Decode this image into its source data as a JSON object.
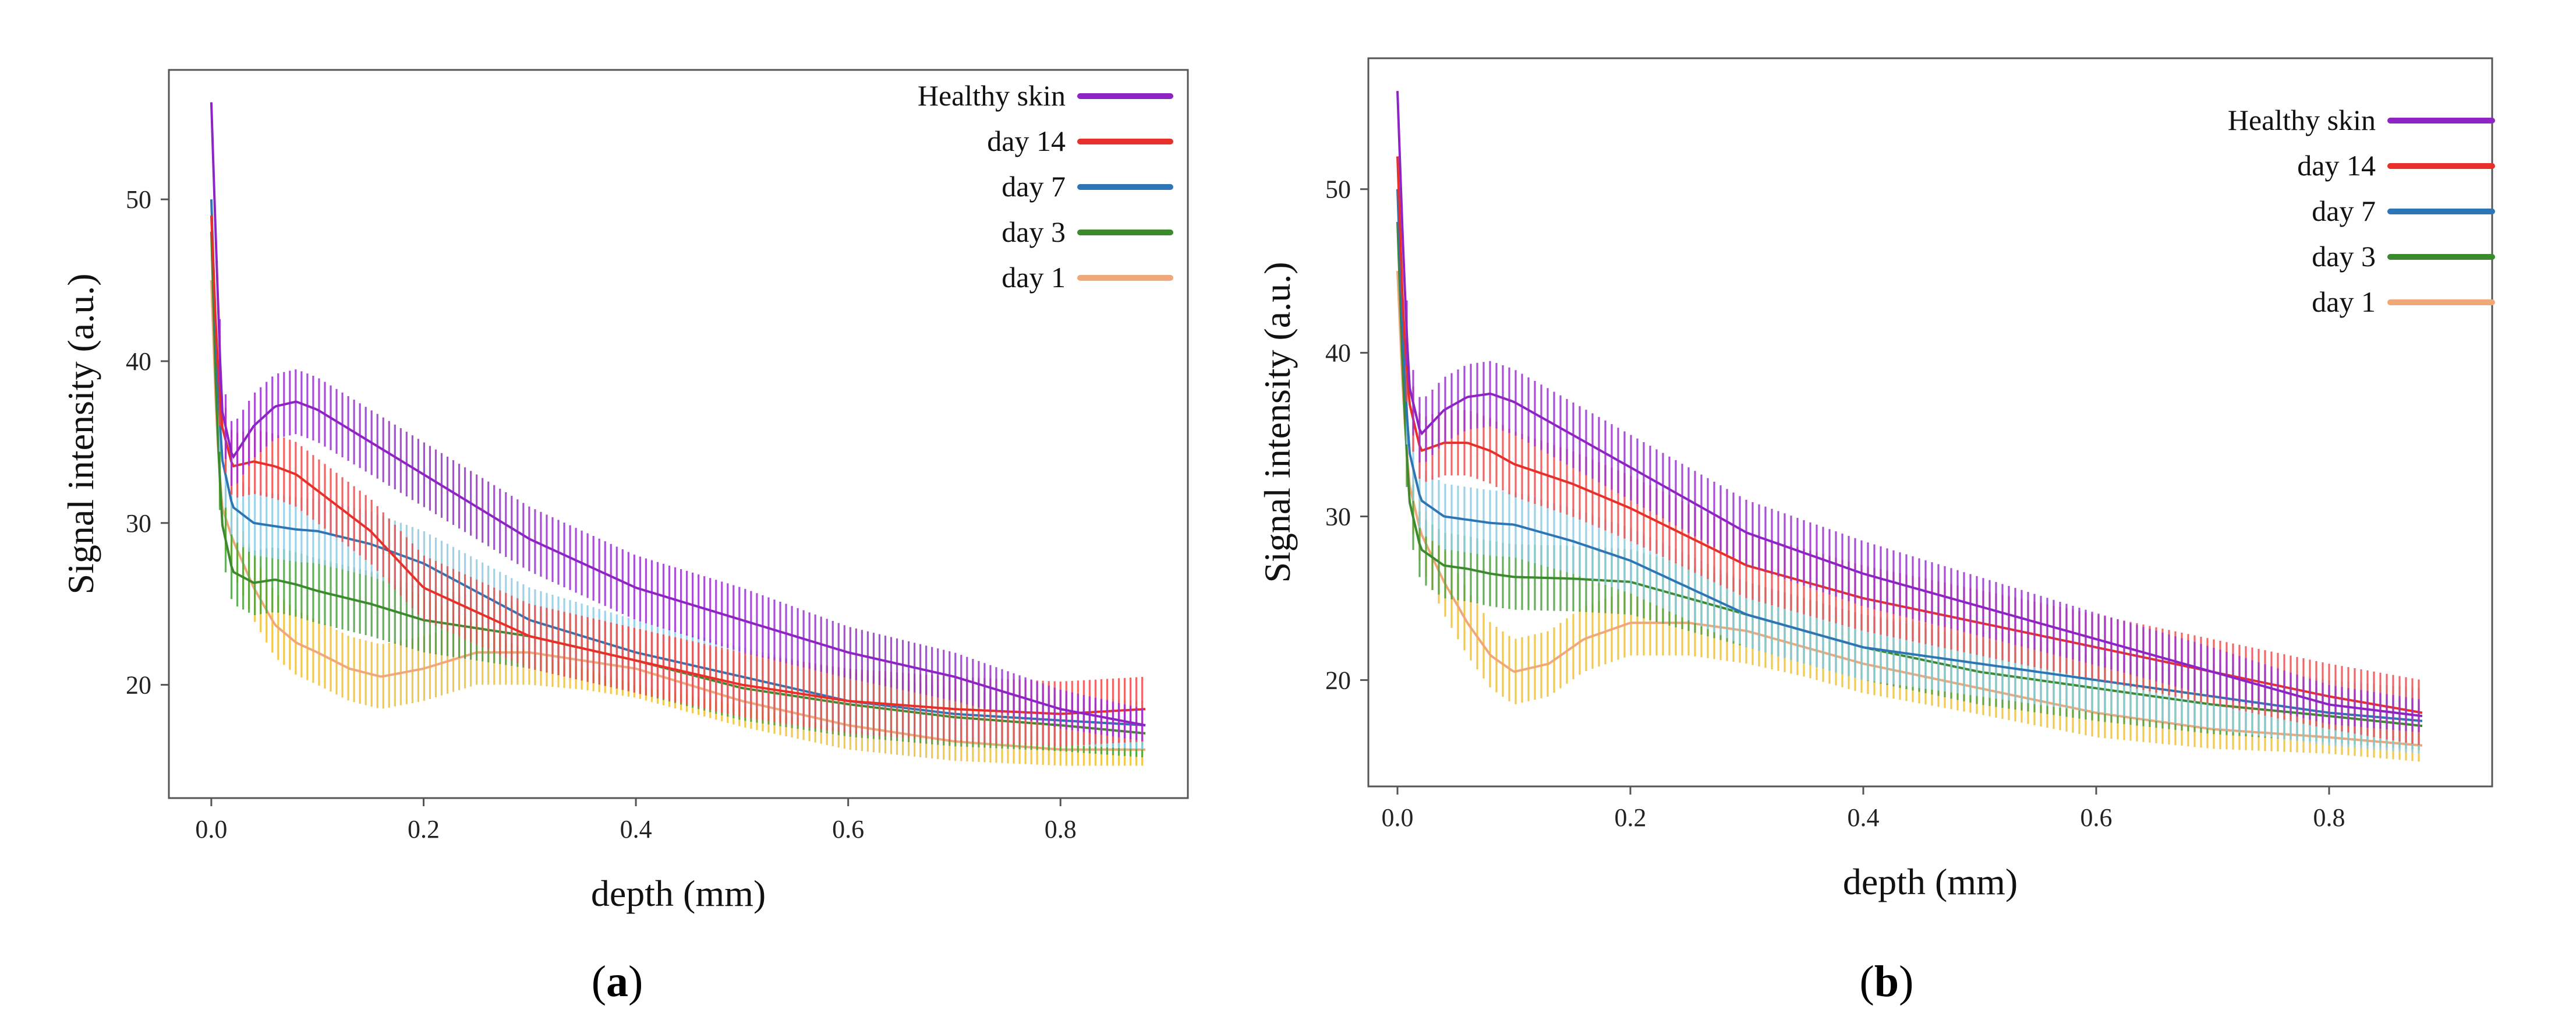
{
  "panel_labels": [
    {
      "open": "(",
      "letter": "a",
      "close": ")"
    },
    {
      "open": "(",
      "letter": "b",
      "close": ")"
    }
  ],
  "chart_data": [
    {
      "type": "line",
      "panel": "a",
      "xlabel": "depth (mm)",
      "ylabel": "Signal intensity (a.u.)",
      "xlim": [
        -0.04,
        0.92
      ],
      "ylim": [
        13,
        58
      ],
      "xticks": [
        0.0,
        0.2,
        0.4,
        0.6,
        0.8
      ],
      "xtick_labels": [
        "0.0",
        "0.2",
        "0.4",
        "0.6",
        "0.8"
      ],
      "yticks": [
        20,
        30,
        40,
        50
      ],
      "ytick_labels": [
        "20",
        "30",
        "40",
        "50"
      ],
      "grid": false,
      "legend_position": "top-right",
      "series": [
        {
          "name": "Healthy skin",
          "color": "#8e24c4",
          "band_color": "#9a30d0",
          "x": [
            0,
            0.005,
            0.01,
            0.02,
            0.04,
            0.06,
            0.08,
            0.1,
            0.15,
            0.2,
            0.3,
            0.4,
            0.5,
            0.6,
            0.7,
            0.8,
            0.88
          ],
          "y": [
            56,
            46,
            37,
            34,
            36,
            37.2,
            37.5,
            37,
            35,
            33,
            29,
            26,
            24,
            22,
            20.5,
            18.5,
            17.5
          ],
          "err": [
            1.5,
            2,
            2,
            2,
            2,
            2,
            2,
            2,
            2,
            2,
            2,
            2,
            2,
            1.6,
            1.5,
            1.2,
            1
          ]
        },
        {
          "name": "day 14",
          "color": "#e8302a",
          "band_color": "#ee4c4c",
          "x": [
            0,
            0.005,
            0.01,
            0.02,
            0.04,
            0.06,
            0.08,
            0.1,
            0.15,
            0.2,
            0.3,
            0.4,
            0.5,
            0.6,
            0.7,
            0.8,
            0.88
          ],
          "y": [
            49,
            41,
            36,
            33.5,
            33.8,
            33.5,
            33,
            32,
            29.5,
            26,
            23,
            21.5,
            20,
            19,
            18.5,
            18.2,
            18.5
          ],
          "err": [
            1.5,
            2,
            2,
            2,
            2,
            2,
            2,
            2,
            2,
            2,
            2,
            2,
            2,
            2,
            2,
            2,
            2
          ]
        },
        {
          "name": "day 7",
          "color": "#2e75b6",
          "band_color": "#8ccbe6",
          "x": [
            0,
            0.005,
            0.01,
            0.02,
            0.04,
            0.06,
            0.08,
            0.1,
            0.15,
            0.2,
            0.3,
            0.4,
            0.5,
            0.6,
            0.7,
            0.8,
            0.88
          ],
          "y": [
            50,
            40,
            34,
            31,
            30,
            29.8,
            29.6,
            29.5,
            28.7,
            27.5,
            24,
            22,
            20.5,
            19,
            18.2,
            17.8,
            17.5
          ],
          "err": [
            1.5,
            2,
            2,
            2,
            2,
            2,
            2,
            2,
            2,
            2,
            2,
            2,
            1.8,
            1.8,
            1.6,
            1.5,
            1.5
          ]
        },
        {
          "name": "day 3",
          "color": "#3c8a2e",
          "band_color": "#4aa040",
          "x": [
            0,
            0.005,
            0.01,
            0.02,
            0.04,
            0.06,
            0.08,
            0.1,
            0.15,
            0.2,
            0.3,
            0.4,
            0.5,
            0.6,
            0.7,
            0.8,
            0.88
          ],
          "y": [
            48,
            37,
            30,
            27,
            26.3,
            26.5,
            26.2,
            25.8,
            25,
            24,
            23,
            21.5,
            19.8,
            18.8,
            18,
            17.5,
            17
          ],
          "err": [
            1.5,
            2,
            2,
            2,
            2,
            2,
            2,
            2,
            2,
            2,
            2,
            2,
            2,
            2,
            1.8,
            1.6,
            1.5
          ]
        },
        {
          "name": "day 1",
          "color": "#f0a878",
          "band_color": "#f0c030",
          "x": [
            0,
            0.005,
            0.01,
            0.02,
            0.04,
            0.06,
            0.08,
            0.1,
            0.13,
            0.16,
            0.2,
            0.25,
            0.3,
            0.35,
            0.4,
            0.5,
            0.6,
            0.7,
            0.8,
            0.88
          ],
          "y": [
            45,
            36,
            31,
            29,
            26,
            23.7,
            22.6,
            22,
            21,
            20.5,
            21,
            22,
            22,
            21.5,
            21,
            19,
            17.5,
            16.5,
            16,
            16
          ],
          "err": [
            1.5,
            2,
            2,
            2,
            2,
            2,
            2,
            2,
            2,
            2,
            2,
            2,
            2,
            1.8,
            1.8,
            1.6,
            1.5,
            1.2,
            1,
            1
          ]
        }
      ]
    },
    {
      "type": "line",
      "panel": "b",
      "xlabel": "depth (mm)",
      "ylabel": "Signal intensity (a.u.)",
      "xlim": [
        -0.025,
        0.94
      ],
      "ylim": [
        13.5,
        58
      ],
      "xticks": [
        0.0,
        0.2,
        0.4,
        0.6,
        0.8
      ],
      "xtick_labels": [
        "0.0",
        "0.2",
        "0.4",
        "0.6",
        "0.8"
      ],
      "yticks": [
        20,
        30,
        40,
        50
      ],
      "ytick_labels": [
        "20",
        "30",
        "40",
        "50"
      ],
      "grid": false,
      "legend_position": "top-right",
      "series": [
        {
          "name": "Healthy skin",
          "color": "#8e24c4",
          "band_color": "#9a30d0",
          "x": [
            0,
            0.005,
            0.01,
            0.02,
            0.04,
            0.06,
            0.08,
            0.1,
            0.15,
            0.2,
            0.3,
            0.4,
            0.5,
            0.6,
            0.7,
            0.8,
            0.88
          ],
          "y": [
            56,
            46,
            38,
            35,
            36.5,
            37.3,
            37.5,
            37,
            35,
            33,
            29,
            26.5,
            24.5,
            22.5,
            20.5,
            18.5,
            17.8
          ],
          "err": [
            1.5,
            2,
            2,
            2,
            2,
            2,
            2,
            2,
            2,
            2,
            2,
            2,
            1.8,
            1.6,
            1.5,
            1.2,
            1
          ]
        },
        {
          "name": "day 14",
          "color": "#e8302a",
          "band_color": "#ee4c4c",
          "x": [
            0,
            0.005,
            0.01,
            0.02,
            0.04,
            0.06,
            0.08,
            0.1,
            0.15,
            0.2,
            0.3,
            0.4,
            0.5,
            0.6,
            0.7,
            0.8,
            0.88
          ],
          "y": [
            52,
            42,
            37,
            34,
            34.5,
            34.5,
            34,
            33.2,
            32,
            30.5,
            27,
            25,
            23.5,
            22,
            20.5,
            19,
            18
          ],
          "err": [
            1.5,
            2,
            2,
            2,
            2,
            2,
            2,
            2,
            2,
            2,
            2,
            2,
            2,
            2,
            2,
            2,
            2
          ]
        },
        {
          "name": "day 7",
          "color": "#2e75b6",
          "band_color": "#8ccbe6",
          "x": [
            0,
            0.005,
            0.01,
            0.02,
            0.04,
            0.06,
            0.08,
            0.1,
            0.15,
            0.2,
            0.3,
            0.4,
            0.5,
            0.6,
            0.7,
            0.8,
            0.88
          ],
          "y": [
            50,
            40,
            34,
            31,
            30,
            29.8,
            29.6,
            29.5,
            28.5,
            27.3,
            24,
            22,
            21,
            20,
            19,
            18,
            17.5
          ],
          "err": [
            1.5,
            2,
            2,
            2,
            2,
            2,
            2,
            2,
            2,
            2,
            2,
            2,
            2,
            2,
            2,
            2,
            2
          ]
        },
        {
          "name": "day 3",
          "color": "#3c8a2e",
          "band_color": "#4aa040",
          "x": [
            0,
            0.005,
            0.01,
            0.02,
            0.04,
            0.06,
            0.08,
            0.1,
            0.15,
            0.2,
            0.3,
            0.4,
            0.5,
            0.6,
            0.7,
            0.8,
            0.88
          ],
          "y": [
            48,
            38,
            31,
            28,
            27,
            26.8,
            26.5,
            26.3,
            26.2,
            26,
            24,
            22,
            20.5,
            19.5,
            18.5,
            17.8,
            17.2
          ],
          "err": [
            1.5,
            2,
            2,
            2,
            2,
            2,
            2,
            2,
            2,
            2,
            2,
            2,
            2,
            2,
            1.8,
            1.6,
            1.5
          ]
        },
        {
          "name": "day 1",
          "color": "#f0a878",
          "band_color": "#f0c030",
          "x": [
            0,
            0.005,
            0.01,
            0.02,
            0.04,
            0.06,
            0.08,
            0.1,
            0.13,
            0.16,
            0.2,
            0.25,
            0.3,
            0.35,
            0.4,
            0.5,
            0.6,
            0.7,
            0.8,
            0.88
          ],
          "y": [
            45,
            37,
            32,
            29,
            26,
            23.5,
            21.5,
            20.5,
            21,
            22.5,
            23.5,
            23.5,
            23,
            22,
            21,
            19.5,
            18,
            17,
            16.5,
            16
          ],
          "err": [
            1.5,
            2,
            2,
            2,
            2,
            2,
            2,
            2,
            2,
            2,
            2,
            2,
            2,
            1.8,
            1.8,
            1.6,
            1.5,
            1.2,
            1,
            1
          ]
        }
      ]
    }
  ]
}
